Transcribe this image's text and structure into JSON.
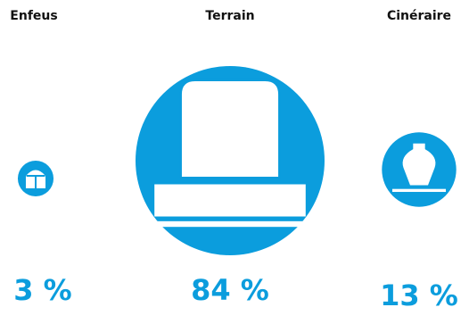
{
  "colors": {
    "accent": "#0b9ddd",
    "label": "#111111",
    "background": "#ffffff"
  },
  "chart_data": {
    "type": "proportional-area (bubble) chart",
    "categories": [
      "Enfeus",
      "Terrain",
      "Cinéraire"
    ],
    "values": [
      3,
      84,
      13
    ],
    "value_labels": [
      "3 %",
      "84 %",
      "13 %"
    ],
    "icons": [
      "crypt-icon",
      "tombstone-icon",
      "urn-icon"
    ],
    "unit": "%"
  }
}
